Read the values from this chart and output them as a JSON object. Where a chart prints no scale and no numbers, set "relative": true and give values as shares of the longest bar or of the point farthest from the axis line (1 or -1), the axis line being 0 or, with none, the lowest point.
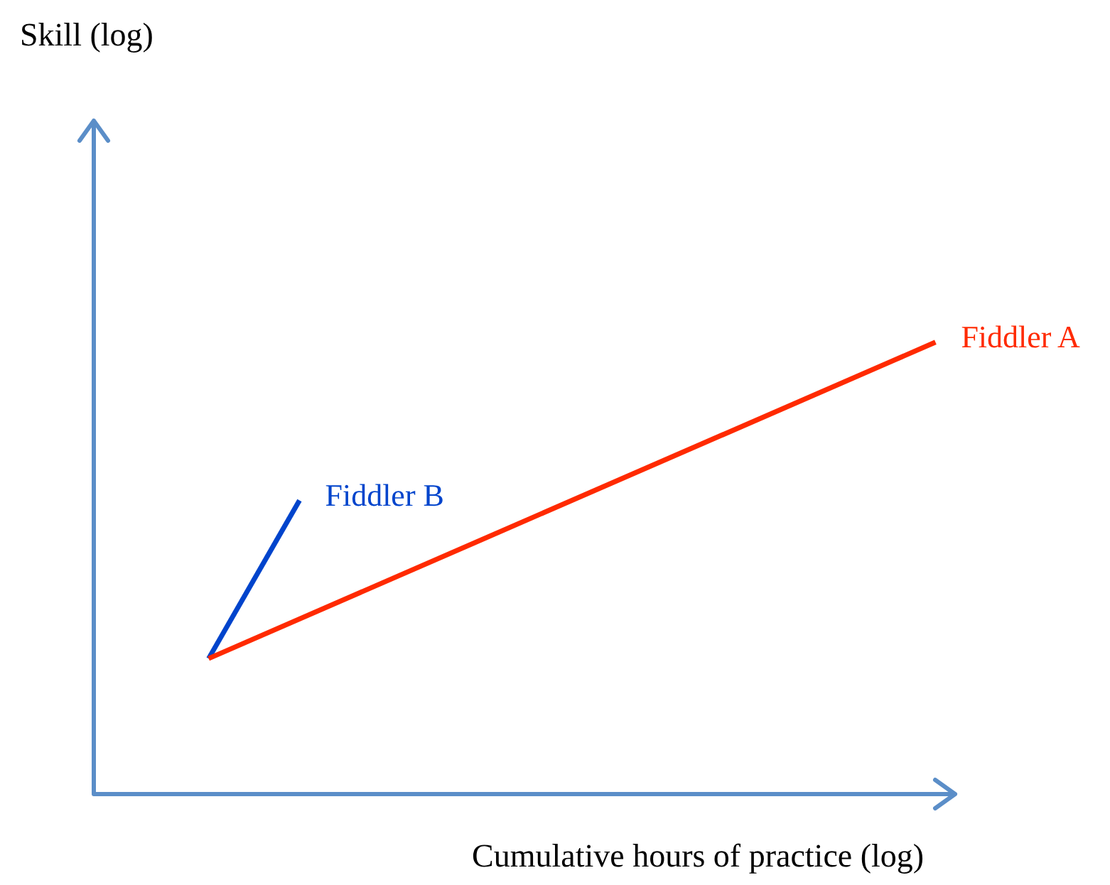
{
  "chart_data": {
    "type": "line",
    "relative": true,
    "xlabel": "Cumulative hours of practice (log)",
    "annotations": [
      "Skill (log)"
    ],
    "legend": false,
    "marker": "none",
    "line_style": "solid",
    "categories": [
      null,
      null,
      null,
      null,
      null,
      null,
      null,
      null,
      null
    ],
    "series": [
      {
        "name": "Fiddler A",
        "color": "#ff2a00",
        "values": [
          0.3,
          null,
          null,
          null,
          null,
          null,
          null,
          null,
          1
        ]
      },
      {
        "name": "Fiddler B",
        "color": "#0044cc",
        "values": [
          0.3,
          0.65,
          null,
          null,
          null,
          null,
          null,
          null,
          null
        ]
      }
    ]
  }
}
